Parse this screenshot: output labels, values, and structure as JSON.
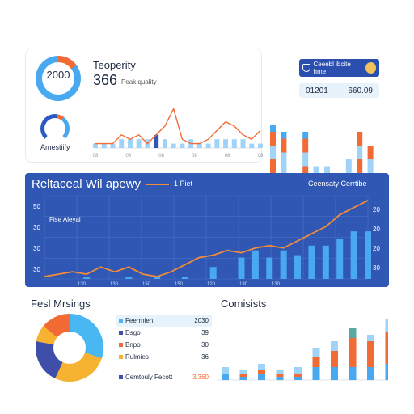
{
  "colors": {
    "blue": "#49a9f0",
    "navy": "#2f57b3",
    "orange": "#f26b35",
    "lightblue": "#9fd3f7",
    "yellow": "#f6b231",
    "indigo": "#3f4ea8"
  },
  "top_left": {
    "ring_value": "2000",
    "title": "Teoperity",
    "value": "366",
    "sub": "Peak quality",
    "gauge_label": "Amestiify"
  },
  "top_right": {
    "badge_text": "Ceeebl ibcite hme",
    "stat_a": "01201",
    "stat_b": "660.09"
  },
  "middle": {
    "title": "Reltaceal Wil apewy",
    "title_sub": "1 Piet",
    "right_label": "Ceensaty Cerrtibe",
    "series_label": "Fise Aleyal",
    "y_ticks_left": [
      "50",
      "30",
      "30",
      "30"
    ],
    "y_ticks_right": [
      "20",
      "20",
      "20",
      "30"
    ],
    "x_labels": [
      "130",
      "130",
      "150",
      "150",
      "120",
      "130",
      "130"
    ]
  },
  "bottom_left": {
    "title": "Fesl Mrsings",
    "legend": [
      {
        "label": "Feerrnien",
        "value": "2030",
        "color": "#49b8f2"
      },
      {
        "label": "Dsgo",
        "value": "39",
        "color": "#3f4ea8"
      },
      {
        "label": "Bnpo",
        "value": "30",
        "color": "#f26b35"
      },
      {
        "label": "Rulmies",
        "value": "36",
        "color": "#f6b231"
      },
      {
        "label": "Cemtouly Fecott",
        "value": "3.360",
        "color": "#3f4ea8"
      }
    ]
  },
  "bottom_right": {
    "title": "Comisists"
  },
  "chart_data": [
    {
      "type": "line",
      "name": "trend",
      "x": [
        0,
        1,
        2,
        3,
        4,
        5,
        6,
        7,
        8,
        9,
        10,
        11,
        12,
        13,
        14,
        15,
        16,
        17,
        18,
        19
      ],
      "series": [
        {
          "values": [
            1,
            1,
            1,
            3,
            2,
            3,
            1,
            3,
            5,
            9,
            2,
            1,
            1,
            2,
            4,
            6,
            5,
            3,
            2,
            4
          ]
        }
      ],
      "bars": [
        1,
        1,
        1,
        2,
        2,
        2,
        2,
        3,
        2,
        1,
        1,
        2,
        1,
        1,
        2,
        2,
        2,
        2,
        1,
        1
      ],
      "x_labels": [
        "08",
        "08",
        "08",
        "08",
        "08",
        "08"
      ],
      "ylim": [
        0,
        10
      ]
    },
    {
      "type": "bar",
      "name": "top-right-stacked",
      "stacks": [
        [
          6,
          2,
          2,
          1
        ],
        [
          4,
          3,
          2,
          1
        ],
        [
          2,
          0,
          0,
          0
        ],
        [
          5,
          2,
          2,
          1
        ],
        [
          3,
          2,
          0,
          0
        ],
        [
          4,
          1,
          0,
          0
        ],
        [
          2,
          0,
          0,
          0
        ],
        [
          3,
          3,
          0,
          0
        ],
        [
          6,
          2,
          2,
          0
        ],
        [
          4,
          2,
          2,
          0
        ]
      ],
      "ylim": [
        0,
        12
      ]
    },
    {
      "type": "line",
      "name": "middle",
      "line": [
        1,
        2,
        3,
        2,
        5,
        3,
        5,
        2,
        1,
        3,
        6,
        9,
        10,
        12,
        11,
        13,
        14,
        13,
        16,
        19,
        22,
        27,
        30,
        33
      ],
      "bars": [
        0,
        0,
        0,
        1,
        0,
        0,
        1,
        0,
        1,
        0,
        1,
        0,
        5,
        0,
        9,
        12,
        9,
        12,
        10,
        14,
        14,
        17,
        20,
        20
      ],
      "ylim": [
        0,
        35
      ]
    },
    {
      "type": "bar",
      "name": "bottom-right-stacked",
      "stacks": [
        [
          4,
          2,
          2
        ],
        [
          3,
          2,
          1
        ],
        [
          5,
          3,
          2
        ],
        [
          3,
          2,
          1
        ],
        [
          4,
          3,
          2
        ],
        [
          10,
          6,
          3
        ],
        [
          12,
          8,
          3
        ],
        [
          16,
          12,
          3
        ],
        [
          14,
          10,
          2
        ],
        [
          19,
          14,
          4
        ]
      ],
      "ylim": [
        0,
        22
      ]
    }
  ]
}
